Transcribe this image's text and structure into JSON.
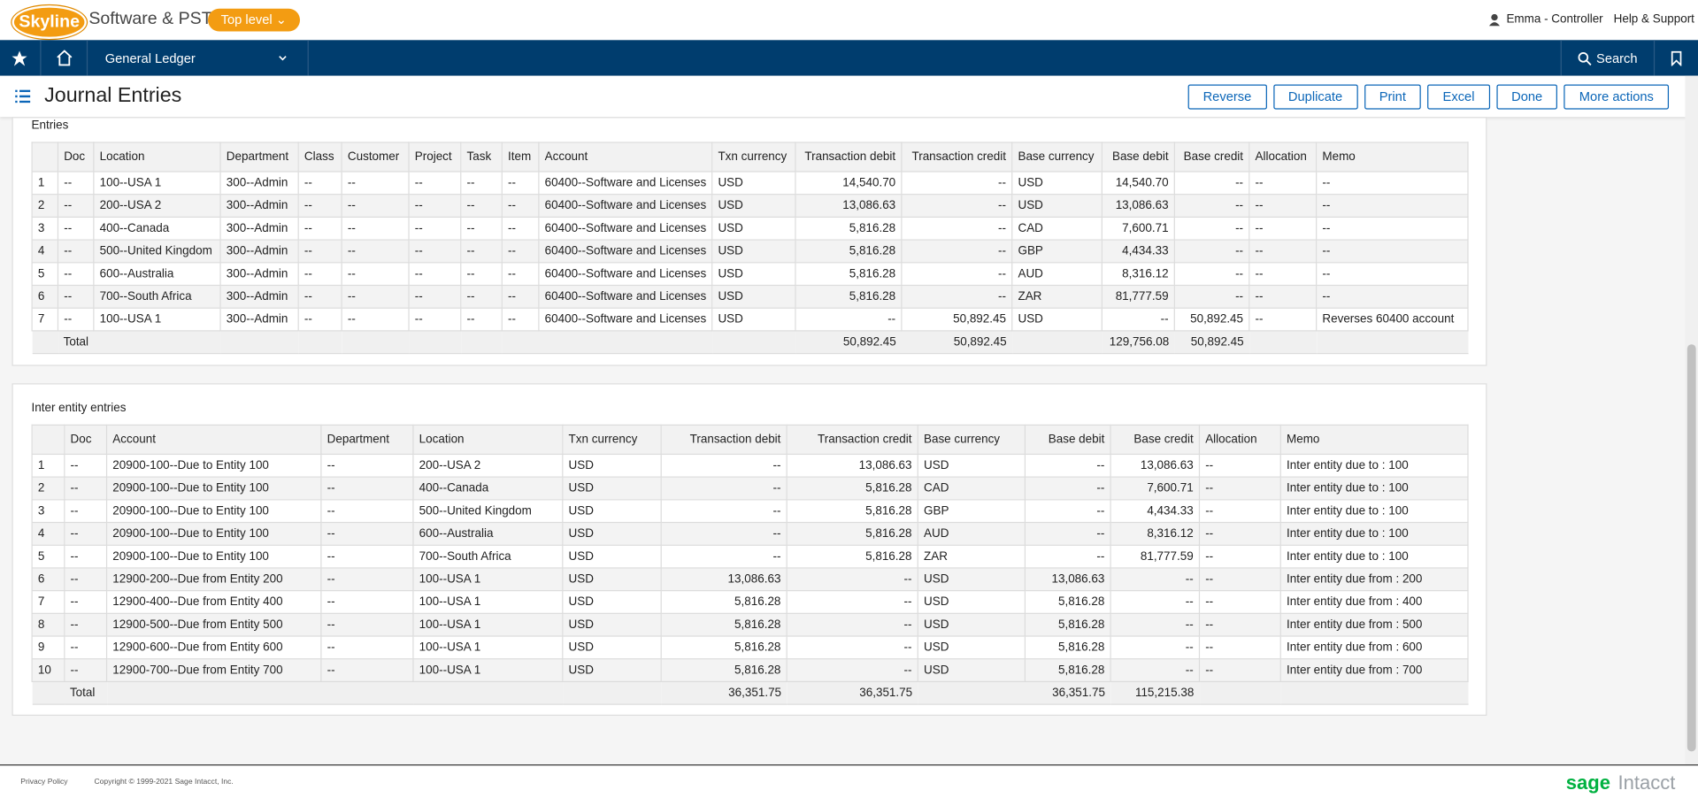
{
  "header": {
    "logo": "Skyline",
    "company": "Software & PST",
    "entity": "Top level",
    "user": "Emma - Controller",
    "help": "Help & Support"
  },
  "nav": {
    "module": "General Ledger",
    "search": "Search"
  },
  "page": {
    "title": "Journal Entries",
    "buttons": [
      "Reverse",
      "Duplicate",
      "Print",
      "Excel",
      "Done",
      "More actions"
    ]
  },
  "entries": {
    "title": "Entries",
    "columns": [
      null,
      "Doc",
      "Location",
      "Department",
      "Class",
      "Customer",
      "Project",
      "Task",
      "Item",
      "Account",
      "Txn currency",
      "Transaction debit",
      "Transaction credit",
      "Base currency",
      "Base debit",
      "Base credit",
      "Allocation",
      "Memo"
    ],
    "rows": [
      [
        "1",
        "--",
        "100--USA 1",
        "300--Admin",
        "--",
        "--",
        "--",
        "--",
        "--",
        "60400--Software and Licenses",
        "USD",
        "14,540.70",
        "--",
        "USD",
        "14,540.70",
        "--",
        "--",
        "--"
      ],
      [
        "2",
        "--",
        "200--USA 2",
        "300--Admin",
        "--",
        "--",
        "--",
        "--",
        "--",
        "60400--Software and Licenses",
        "USD",
        "13,086.63",
        "--",
        "USD",
        "13,086.63",
        "--",
        "--",
        "--"
      ],
      [
        "3",
        "--",
        "400--Canada",
        "300--Admin",
        "--",
        "--",
        "--",
        "--",
        "--",
        "60400--Software and Licenses",
        "USD",
        "5,816.28",
        "--",
        "CAD",
        "7,600.71",
        "--",
        "--",
        "--"
      ],
      [
        "4",
        "--",
        "500--United Kingdom",
        "300--Admin",
        "--",
        "--",
        "--",
        "--",
        "--",
        "60400--Software and Licenses",
        "USD",
        "5,816.28",
        "--",
        "GBP",
        "4,434.33",
        "--",
        "--",
        "--"
      ],
      [
        "5",
        "--",
        "600--Australia",
        "300--Admin",
        "--",
        "--",
        "--",
        "--",
        "--",
        "60400--Software and Licenses",
        "USD",
        "5,816.28",
        "--",
        "AUD",
        "8,316.12",
        "--",
        "--",
        "--"
      ],
      [
        "6",
        "--",
        "700--South Africa",
        "300--Admin",
        "--",
        "--",
        "--",
        "--",
        "--",
        "60400--Software and Licenses",
        "USD",
        "5,816.28",
        "--",
        "ZAR",
        "81,777.59",
        "--",
        "--",
        "--"
      ],
      [
        "7",
        "--",
        "100--USA 1",
        "300--Admin",
        "--",
        "--",
        "--",
        "--",
        "--",
        "60400--Software and Licenses",
        "USD",
        "--",
        "50,892.45",
        "USD",
        "--",
        "50,892.45",
        "--",
        "Reverses 60400 account"
      ]
    ],
    "total": [
      null,
      "Total",
      null,
      null,
      null,
      null,
      null,
      null,
      null,
      null,
      null,
      "50,892.45",
      "50,892.45",
      null,
      "129,756.08",
      "50,892.45",
      null,
      null
    ]
  },
  "inter": {
    "title": "Inter entity entries",
    "columns": [
      null,
      "Doc",
      "Account",
      "Department",
      "Location",
      "Txn currency",
      "Transaction debit",
      "Transaction credit",
      "Base currency",
      "Base debit",
      "Base credit",
      "Allocation",
      "Memo"
    ],
    "rows": [
      [
        "1",
        "--",
        "20900-100--Due to Entity 100",
        "--",
        "200--USA 2",
        "USD",
        "--",
        "13,086.63",
        "USD",
        "--",
        "13,086.63",
        "--",
        "Inter entity due to : 100"
      ],
      [
        "2",
        "--",
        "20900-100--Due to Entity 100",
        "--",
        "400--Canada",
        "USD",
        "--",
        "5,816.28",
        "CAD",
        "--",
        "7,600.71",
        "--",
        "Inter entity due to : 100"
      ],
      [
        "3",
        "--",
        "20900-100--Due to Entity 100",
        "--",
        "500--United Kingdom",
        "USD",
        "--",
        "5,816.28",
        "GBP",
        "--",
        "4,434.33",
        "--",
        "Inter entity due to : 100"
      ],
      [
        "4",
        "--",
        "20900-100--Due to Entity 100",
        "--",
        "600--Australia",
        "USD",
        "--",
        "5,816.28",
        "AUD",
        "--",
        "8,316.12",
        "--",
        "Inter entity due to : 100"
      ],
      [
        "5",
        "--",
        "20900-100--Due to Entity 100",
        "--",
        "700--South Africa",
        "USD",
        "--",
        "5,816.28",
        "ZAR",
        "--",
        "81,777.59",
        "--",
        "Inter entity due to : 100"
      ],
      [
        "6",
        "--",
        "12900-200--Due from Entity 200",
        "--",
        "100--USA 1",
        "USD",
        "13,086.63",
        "--",
        "USD",
        "13,086.63",
        "--",
        "--",
        "Inter entity due from : 200"
      ],
      [
        "7",
        "--",
        "12900-400--Due from Entity 400",
        "--",
        "100--USA 1",
        "USD",
        "5,816.28",
        "--",
        "USD",
        "5,816.28",
        "--",
        "--",
        "Inter entity due from : 400"
      ],
      [
        "8",
        "--",
        "12900-500--Due from Entity 500",
        "--",
        "100--USA 1",
        "USD",
        "5,816.28",
        "--",
        "USD",
        "5,816.28",
        "--",
        "--",
        "Inter entity due from : 500"
      ],
      [
        "9",
        "--",
        "12900-600--Due from Entity 600",
        "--",
        "100--USA 1",
        "USD",
        "5,816.28",
        "--",
        "USD",
        "5,816.28",
        "--",
        "--",
        "Inter entity due from : 600"
      ],
      [
        "10",
        "--",
        "12900-700--Due from Entity 700",
        "--",
        "100--USA 1",
        "USD",
        "5,816.28",
        "--",
        "USD",
        "5,816.28",
        "--",
        "--",
        "Inter entity due from : 700"
      ]
    ],
    "total": [
      null,
      "Total",
      null,
      null,
      null,
      null,
      "36,351.75",
      "36,351.75",
      null,
      "36,351.75",
      "115,215.38",
      null,
      null
    ]
  },
  "footer": {
    "privacy": "Privacy Policy",
    "copyright": "Copyright © 1999-2021 Sage Intacct, Inc.",
    "brand": "sage",
    "product": "Intacct"
  }
}
